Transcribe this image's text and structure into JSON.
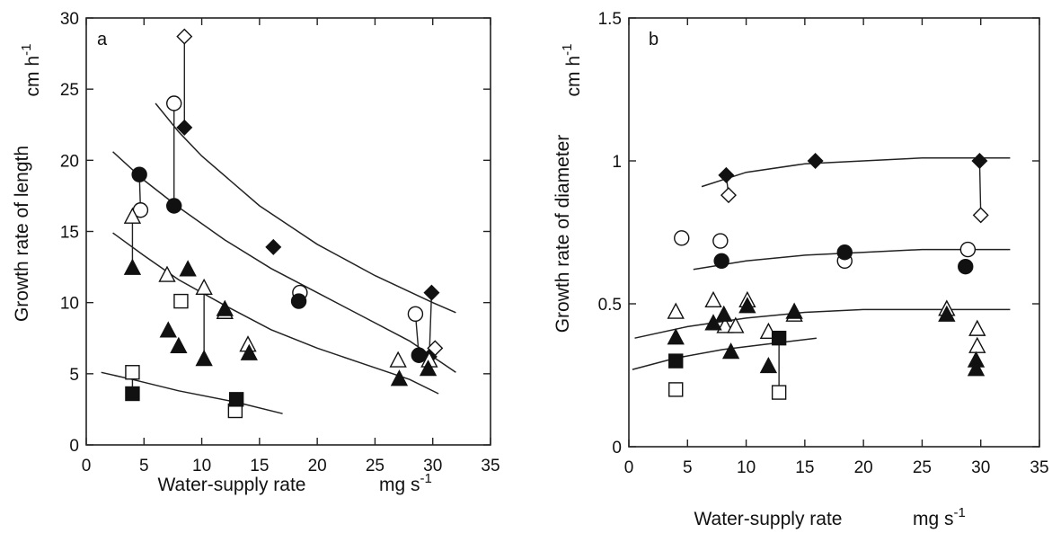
{
  "figure": {
    "panels": [
      "a",
      "b"
    ]
  },
  "chart_data": [
    {
      "type": "scatter",
      "panel_label": "a",
      "xlabel": "Water-supply rate",
      "xunit": "mg s",
      "xunit_exp": "-1",
      "ylabel": "Growth rate of length",
      "yunit": "cm h",
      "yunit_exp": "-1",
      "xlim": [
        0,
        35
      ],
      "ylim": [
        0,
        30
      ],
      "xticks": [
        0,
        5,
        10,
        15,
        20,
        25,
        30,
        35
      ],
      "yticks": [
        0,
        5,
        10,
        15,
        20,
        25,
        30
      ],
      "grid": false,
      "series": [
        {
          "marker": "diamond",
          "fill": "open",
          "points": [
            [
              8.5,
              28.7
            ],
            [
              30.2,
              6.8
            ]
          ]
        },
        {
          "marker": "diamond",
          "fill": "filled",
          "points": [
            [
              8.5,
              22.3
            ],
            [
              16.2,
              13.9
            ],
            [
              29.9,
              10.7
            ],
            [
              29.7,
              6.2
            ]
          ]
        },
        {
          "marker": "circle",
          "fill": "open",
          "points": [
            [
              7.6,
              24.0
            ],
            [
              4.7,
              16.5
            ],
            [
              18.5,
              10.7
            ],
            [
              28.5,
              9.2
            ]
          ]
        },
        {
          "marker": "circle",
          "fill": "filled",
          "points": [
            [
              4.6,
              19.0
            ],
            [
              7.6,
              16.8
            ],
            [
              18.4,
              10.1
            ],
            [
              28.8,
              6.3
            ]
          ]
        },
        {
          "marker": "triangle",
          "fill": "open",
          "points": [
            [
              4.0,
              16.0
            ],
            [
              7.0,
              11.9
            ],
            [
              10.2,
              11.0
            ],
            [
              12.0,
              9.3
            ],
            [
              14.0,
              7.0
            ],
            [
              27.0,
              5.9
            ],
            [
              29.7,
              5.9
            ]
          ]
        },
        {
          "marker": "triangle",
          "fill": "filled",
          "points": [
            [
              4.0,
              12.4
            ],
            [
              7.1,
              8.0
            ],
            [
              8.0,
              6.9
            ],
            [
              8.8,
              12.3
            ],
            [
              10.2,
              6.0
            ],
            [
              12.0,
              9.5
            ],
            [
              14.1,
              6.4
            ],
            [
              27.1,
              4.6
            ],
            [
              29.6,
              5.3
            ]
          ]
        },
        {
          "marker": "square",
          "fill": "open",
          "points": [
            [
              4.0,
              5.1
            ],
            [
              8.2,
              10.1
            ],
            [
              12.9,
              2.4
            ]
          ]
        },
        {
          "marker": "square",
          "fill": "filled",
          "points": [
            [
              4.0,
              3.6
            ],
            [
              13.0,
              3.2
            ]
          ]
        }
      ],
      "connectors": [
        [
          [
            8.5,
            28.7
          ],
          [
            8.5,
            22.3
          ]
        ],
        [
          [
            7.6,
            24.0
          ],
          [
            7.6,
            16.8
          ]
        ],
        [
          [
            4.6,
            19.0
          ],
          [
            4.7,
            16.5
          ]
        ],
        [
          [
            4.0,
            16.0
          ],
          [
            4.0,
            12.4
          ]
        ],
        [
          [
            10.2,
            11.0
          ],
          [
            10.2,
            6.0
          ]
        ],
        [
          [
            28.5,
            9.2
          ],
          [
            28.8,
            6.3
          ]
        ],
        [
          [
            29.9,
            10.7
          ],
          [
            29.7,
            6.2
          ]
        ],
        [
          [
            4.0,
            5.1
          ],
          [
            4.0,
            3.6
          ]
        ],
        [
          [
            13.0,
            3.2
          ],
          [
            12.9,
            2.4
          ]
        ]
      ],
      "fit_curves": [
        {
          "points": [
            [
              6.0,
              24.0
            ],
            [
              8.0,
              22.0
            ],
            [
              10.0,
              20.3
            ],
            [
              15.0,
              16.8
            ],
            [
              20.0,
              14.1
            ],
            [
              25.0,
              11.9
            ],
            [
              30.0,
              10.0
            ],
            [
              32.0,
              9.3
            ]
          ]
        },
        {
          "points": [
            [
              2.3,
              20.6
            ],
            [
              5.0,
              18.6
            ],
            [
              8.0,
              16.7
            ],
            [
              12.0,
              14.4
            ],
            [
              16.0,
              12.4
            ],
            [
              20.0,
              10.7
            ],
            [
              24.0,
              9.0
            ],
            [
              28.0,
              7.3
            ],
            [
              32.0,
              5.1
            ]
          ]
        },
        {
          "points": [
            [
              2.3,
              14.9
            ],
            [
              5.0,
              13.3
            ],
            [
              8.0,
              11.6
            ],
            [
              12.0,
              9.8
            ],
            [
              16.0,
              8.1
            ],
            [
              20.0,
              6.8
            ],
            [
              24.0,
              5.7
            ],
            [
              28.0,
              4.6
            ],
            [
              30.5,
              3.6
            ]
          ]
        },
        {
          "points": [
            [
              1.3,
              5.1
            ],
            [
              4.0,
              4.6
            ],
            [
              8.0,
              3.8
            ],
            [
              13.0,
              3.0
            ],
            [
              17.0,
              2.2
            ]
          ]
        }
      ]
    },
    {
      "type": "scatter",
      "panel_label": "b",
      "xlabel": "Water-supply rate",
      "xunit": "mg s",
      "xunit_exp": "-1",
      "ylabel": "Growth rate of diameter",
      "yunit": "cm h",
      "yunit_exp": "-1",
      "xlim": [
        0,
        35
      ],
      "ylim": [
        0,
        1.5
      ],
      "xticks": [
        0,
        5,
        10,
        15,
        20,
        25,
        30,
        35
      ],
      "yticks": [
        0,
        0.5,
        1,
        1.5
      ],
      "ytick_labels": [
        "0",
        "0.5",
        "1",
        "1.5"
      ],
      "grid": false,
      "series": [
        {
          "marker": "diamond",
          "fill": "open",
          "points": [
            [
              8.5,
              0.88
            ],
            [
              30.0,
              0.81
            ]
          ]
        },
        {
          "marker": "diamond",
          "fill": "filled",
          "points": [
            [
              8.3,
              0.95
            ],
            [
              15.9,
              1.0
            ],
            [
              29.9,
              1.0
            ]
          ]
        },
        {
          "marker": "circle",
          "fill": "open",
          "points": [
            [
              4.5,
              0.73
            ],
            [
              7.8,
              0.72
            ],
            [
              18.4,
              0.65
            ],
            [
              28.9,
              0.69
            ]
          ]
        },
        {
          "marker": "circle",
          "fill": "filled",
          "points": [
            [
              7.9,
              0.65
            ],
            [
              18.4,
              0.68
            ],
            [
              28.7,
              0.63
            ]
          ]
        },
        {
          "marker": "triangle",
          "fill": "open",
          "points": [
            [
              4.0,
              0.47
            ],
            [
              7.2,
              0.51
            ],
            [
              8.2,
              0.42
            ],
            [
              9.1,
              0.42
            ],
            [
              10.1,
              0.51
            ],
            [
              11.9,
              0.4
            ],
            [
              14.1,
              0.46
            ],
            [
              27.1,
              0.48
            ],
            [
              29.7,
              0.41
            ],
            [
              29.7,
              0.35
            ]
          ]
        },
        {
          "marker": "triangle",
          "fill": "filled",
          "points": [
            [
              4.0,
              0.38
            ],
            [
              7.2,
              0.43
            ],
            [
              8.1,
              0.46
            ],
            [
              8.7,
              0.33
            ],
            [
              10.1,
              0.49
            ],
            [
              11.9,
              0.28
            ],
            [
              14.1,
              0.47
            ],
            [
              27.1,
              0.46
            ],
            [
              29.6,
              0.3
            ],
            [
              29.6,
              0.27
            ]
          ]
        },
        {
          "marker": "square",
          "fill": "open",
          "points": [
            [
              4.0,
              0.2
            ],
            [
              12.8,
              0.19
            ]
          ]
        },
        {
          "marker": "square",
          "fill": "filled",
          "points": [
            [
              4.0,
              0.3
            ],
            [
              12.8,
              0.38
            ]
          ]
        }
      ],
      "connectors": [
        [
          [
            8.3,
            0.95
          ],
          [
            8.5,
            0.88
          ]
        ],
        [
          [
            29.9,
            1.0
          ],
          [
            30.0,
            0.81
          ]
        ],
        [
          [
            12.8,
            0.38
          ],
          [
            12.8,
            0.19
          ]
        ]
      ],
      "fit_curves": [
        {
          "points": [
            [
              6.2,
              0.91
            ],
            [
              10.0,
              0.96
            ],
            [
              15.0,
              0.99
            ],
            [
              20.0,
              1.0
            ],
            [
              25.0,
              1.01
            ],
            [
              30.0,
              1.01
            ],
            [
              32.5,
              1.01
            ]
          ]
        },
        {
          "points": [
            [
              5.5,
              0.62
            ],
            [
              10.0,
              0.65
            ],
            [
              15.0,
              0.67
            ],
            [
              20.0,
              0.68
            ],
            [
              25.0,
              0.69
            ],
            [
              30.0,
              0.69
            ],
            [
              32.5,
              0.69
            ]
          ]
        },
        {
          "points": [
            [
              0.5,
              0.38
            ],
            [
              5.0,
              0.42
            ],
            [
              10.0,
              0.45
            ],
            [
              15.0,
              0.47
            ],
            [
              20.0,
              0.48
            ],
            [
              25.0,
              0.48
            ],
            [
              32.5,
              0.48
            ]
          ]
        },
        {
          "points": [
            [
              0.3,
              0.27
            ],
            [
              4.0,
              0.31
            ],
            [
              8.0,
              0.34
            ],
            [
              12.0,
              0.36
            ],
            [
              16.0,
              0.38
            ]
          ]
        }
      ]
    }
  ]
}
